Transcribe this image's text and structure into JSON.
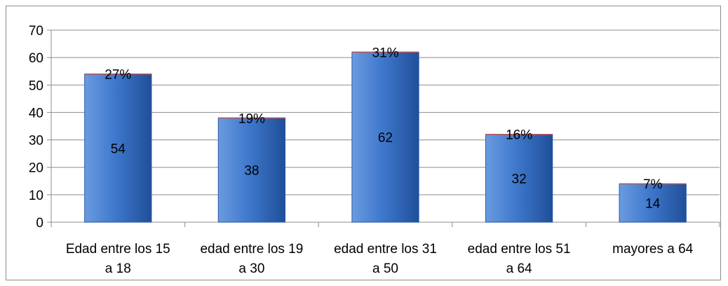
{
  "chart_data": {
    "type": "bar",
    "title": "",
    "xlabel": "",
    "ylabel": "",
    "ylim": [
      0,
      70
    ],
    "yticks": [
      0,
      10,
      20,
      30,
      40,
      50,
      60,
      70
    ],
    "grid": true,
    "legend": "none",
    "categories": [
      [
        "Edad entre los 15",
        "a 18"
      ],
      [
        "edad entre los 19",
        "a 30"
      ],
      [
        "edad entre los 31",
        "a 50"
      ],
      [
        "edad entre los 51",
        "a 64"
      ],
      [
        "mayores a 64"
      ]
    ],
    "values": [
      54,
      38,
      62,
      32,
      14
    ],
    "percent_labels": [
      "27%",
      "19%",
      "31%",
      "16%",
      "7%"
    ],
    "colors": {
      "bar_light": "#6a9be0",
      "bar_mid": "#3f78cc",
      "bar_dark": "#1f4f99",
      "bar_top_edge": "#c0504d",
      "grid": "#8c8c8c",
      "axis": "#8c8c8c"
    }
  }
}
